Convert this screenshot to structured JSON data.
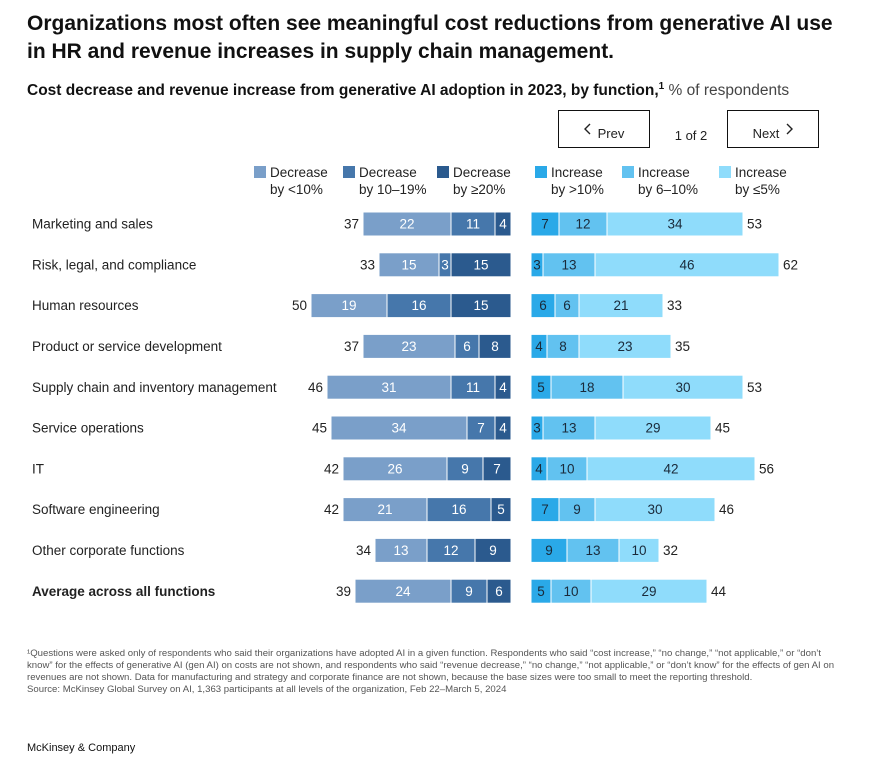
{
  "title": "Organizations most often see meaningful cost reductions from generative AI use in HR and revenue increases in supply chain management.",
  "subtitle": {
    "main": "Cost decrease and revenue increase from generative AI adoption in 2023, by function,",
    "sup": "1",
    "unit": "% of respondents"
  },
  "pager": {
    "prev": "Prev",
    "next": "Next",
    "count": "1 of 2"
  },
  "icons": {
    "prev": "chevron-left-icon",
    "next": "chevron-right-icon"
  },
  "colors": {
    "dec_lt10": "#7a9fc9",
    "dec_10_19": "#4677ab",
    "dec_ge20": "#2b5a8e",
    "inc_gt10": "#2aa9e8",
    "inc_6_10": "#62c2f0",
    "inc_le5": "#8fdcfb"
  },
  "legend": [
    {
      "l1": "Decrease",
      "l2": "by <10%",
      "color": "#7a9fc9"
    },
    {
      "l1": "Decrease",
      "l2": "by 10–19%",
      "color": "#4677ab"
    },
    {
      "l1": "Decrease",
      "l2": "by ≥20%",
      "color": "#2b5a8e"
    },
    {
      "l1": "Increase",
      "l2": "by >10%",
      "color": "#2aa9e8"
    },
    {
      "l1": "Increase",
      "l2": "by 6–10%",
      "color": "#62c2f0"
    },
    {
      "l1": "Increase",
      "l2": "by ≤5%",
      "color": "#8fdcfb"
    }
  ],
  "chart_data": {
    "type": "bar",
    "orientation": "horizontal-diverging",
    "categories": [
      "Marketing and sales",
      "Risk, legal, and compliance",
      "Human resources",
      "Product or service development",
      "Supply chain and inventory management",
      "Service operations",
      "IT",
      "Software engineering",
      "Other corporate functions",
      "Average across all functions"
    ],
    "bold_categories": [
      "Average across all functions"
    ],
    "cost_decrease": {
      "series": [
        {
          "name": "Decrease by <10%",
          "values": [
            22,
            15,
            19,
            23,
            31,
            34,
            26,
            21,
            13,
            24
          ]
        },
        {
          "name": "Decrease by 10–19%",
          "values": [
            11,
            3,
            16,
            6,
            11,
            7,
            9,
            16,
            12,
            9
          ]
        },
        {
          "name": "Decrease by ≥20%",
          "values": [
            4,
            15,
            15,
            8,
            4,
            4,
            7,
            5,
            9,
            6
          ]
        }
      ],
      "totals": [
        37,
        33,
        50,
        37,
        46,
        45,
        42,
        42,
        34,
        39
      ]
    },
    "revenue_increase": {
      "series": [
        {
          "name": "Increase by >10%",
          "values": [
            7,
            3,
            6,
            4,
            5,
            3,
            4,
            7,
            9,
            5
          ]
        },
        {
          "name": "Increase by 6–10%",
          "values": [
            12,
            13,
            6,
            8,
            18,
            13,
            10,
            9,
            13,
            10
          ]
        },
        {
          "name": "Increase by ≤5%",
          "values": [
            34,
            46,
            21,
            23,
            30,
            29,
            42,
            30,
            10,
            29
          ]
        }
      ],
      "totals": [
        53,
        62,
        33,
        35,
        53,
        45,
        56,
        46,
        32,
        44
      ]
    },
    "unit": "% of respondents"
  },
  "footnote": {
    "note": "¹Questions were asked only of respondents who said their organizations have adopted AI in a given function. Respondents who said “cost increase,” “no change,” “not applicable,” or “don’t know” for the effects of generative AI (gen AI) on costs are not shown, and respondents who said “revenue decrease,” “no change,” “not applicable,” or “don’t know” for the effects of gen AI on revenues are not shown. Data for manufacturing and strategy and corporate finance are not shown, because the base sizes were too small to meet the reporting threshold.",
    "source": "Source: McKinsey Global Survey on AI, 1,363 participants at all levels of the organization, Feb 22–March 5, 2024"
  },
  "brand": "McKinsey & Company"
}
